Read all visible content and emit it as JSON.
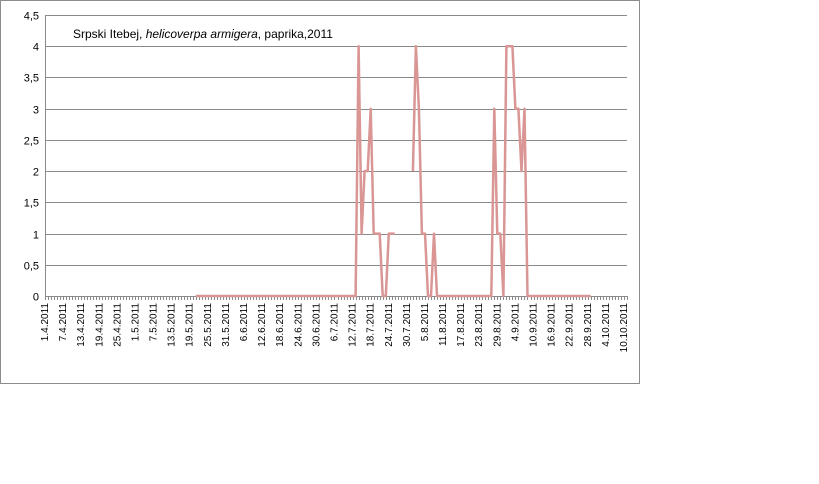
{
  "chart_data": {
    "type": "line",
    "title_parts": [
      "Srpski Itebej, ",
      "helicoverpa armigera",
      ", paprika,2011"
    ],
    "xlabel": "",
    "ylabel": "",
    "ylim": [
      0,
      4.5
    ],
    "yticks": [
      "0",
      "0,5",
      "1",
      "1,5",
      "2",
      "2,5",
      "3",
      "3,5",
      "4",
      "4,5"
    ],
    "ytick_values": [
      0,
      0.5,
      1,
      1.5,
      2,
      2.5,
      3,
      3.5,
      4,
      4.5
    ],
    "x_tick_labels": [
      "1.4.2011",
      "7.4.2011",
      "13.4.2011",
      "19.4.2011",
      "25.4.2011",
      "1.5.2011",
      "7.5.2011",
      "13.5.2011",
      "19.5.2011",
      "25.5.2011",
      "31.5.2011",
      "6.6.2011",
      "12.6.2011",
      "18.6.2011",
      "24.6.2011",
      "30.6.2011",
      "6.7.2011",
      "12.7.2011",
      "18.7.2011",
      "24.7.2011",
      "30.7.2011",
      "5.8.2011",
      "11.8.2011",
      "17.8.2011",
      "23.8.2011",
      "29.8.2011",
      "4.9.2011",
      "10.9.2011",
      "16.9.2011",
      "22.9.2011",
      "28.9.2011",
      "4.10.2011",
      "10.10.2011"
    ],
    "x_range": [
      "1.4.2011",
      "11.10.2011"
    ],
    "grid": true,
    "legend": "none",
    "line_color": "#d99694",
    "series": [
      {
        "segments": [
          [
            [
              "21.5.2011",
              0
            ],
            [
              "13.7.2011",
              0
            ],
            [
              "14.7.2011",
              4
            ],
            [
              "15.7.2011",
              1
            ],
            [
              "16.7.2011",
              2
            ],
            [
              "17.7.2011",
              2
            ],
            [
              "18.7.2011",
              3
            ],
            [
              "19.7.2011",
              1
            ],
            [
              "20.7.2011",
              1
            ],
            [
              "21.7.2011",
              1
            ],
            [
              "22.7.2011",
              0
            ],
            [
              "23.7.2011",
              0
            ],
            [
              "24.7.2011",
              1
            ],
            [
              "25.7.2011",
              1
            ],
            [
              "26.7.2011",
              1
            ]
          ],
          [
            [
              "1.8.2011",
              2
            ],
            [
              "2.8.2011",
              4
            ],
            [
              "3.8.2011",
              3
            ],
            [
              "4.8.2011",
              1
            ],
            [
              "5.8.2011",
              1
            ],
            [
              "6.8.2011",
              0
            ],
            [
              "7.8.2011",
              0
            ],
            [
              "8.8.2011",
              1
            ],
            [
              "9.8.2011",
              0
            ],
            [
              "10.8.2011",
              0
            ],
            [
              "27.8.2011",
              0
            ],
            [
              "28.8.2011",
              3
            ],
            [
              "29.8.2011",
              1
            ],
            [
              "30.8.2011",
              1
            ],
            [
              "31.8.2011",
              0
            ],
            [
              "1.9.2011",
              4
            ],
            [
              "2.9.2011",
              4
            ],
            [
              "3.9.2011",
              4
            ],
            [
              "4.9.2011",
              3
            ],
            [
              "5.9.2011",
              3
            ],
            [
              "6.9.2011",
              2
            ],
            [
              "7.9.2011",
              3
            ],
            [
              "8.9.2011",
              0
            ],
            [
              "29.9.2011",
              0
            ]
          ]
        ]
      }
    ]
  }
}
